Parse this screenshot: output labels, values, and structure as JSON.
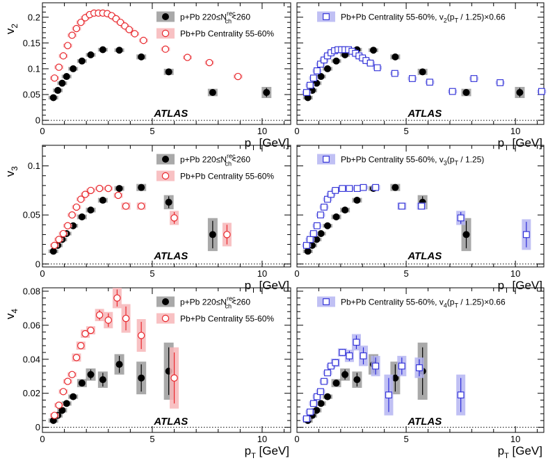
{
  "chart_data": [
    {
      "type": "scatter",
      "id": "v2-left",
      "ylabel": "v",
      "ylabel_sub": "2",
      "xlabel": "p",
      "xlabel_sub": "T",
      "xlabel_unit": " [GeV]",
      "xlim": [
        0,
        11.3
      ],
      "ylim": [
        -0.008,
        0.228
      ],
      "xticks": [
        0,
        5,
        10
      ],
      "yticks": [
        0,
        0.05,
        0.1,
        0.15,
        0.2
      ],
      "ytick_labels": [
        "0",
        "0.05",
        "0.1",
        "0.15",
        "0.2"
      ],
      "atlas_label": "ATLAS",
      "series": [
        {
          "name_prefix": "p+Pb 220≤N",
          "name_sup": "rec",
          "name_sub": "ch",
          "name_suffix": "<260",
          "style": "ppb",
          "x": [
            0.5,
            0.7,
            0.9,
            1.1,
            1.4,
            1.8,
            2.2,
            2.75,
            3.5,
            4.5,
            5.75,
            7.75,
            10.2
          ],
          "y": [
            0.044,
            0.058,
            0.072,
            0.085,
            0.1,
            0.115,
            0.127,
            0.137,
            0.136,
            0.123,
            0.094,
            0.054,
            0.054
          ],
          "yerr": [
            0.002,
            0.002,
            0.002,
            0.002,
            0.002,
            0.002,
            0.002,
            0.002,
            0.003,
            0.004,
            0.005,
            0.006,
            0.009
          ]
        },
        {
          "name": "Pb+Pb  Centrality 55-60%",
          "style": "pbpb",
          "x": [
            0.55,
            0.75,
            0.95,
            1.15,
            1.35,
            1.55,
            1.75,
            1.95,
            2.15,
            2.35,
            2.55,
            2.75,
            2.95,
            3.15,
            3.35,
            3.55,
            3.75,
            3.95,
            4.2,
            4.6,
            5.6,
            6.6,
            7.6,
            8.9
          ],
          "y": [
            0.082,
            0.103,
            0.125,
            0.145,
            0.165,
            0.178,
            0.19,
            0.199,
            0.205,
            0.208,
            0.208,
            0.208,
            0.207,
            0.203,
            0.197,
            0.19,
            0.183,
            0.176,
            0.168,
            0.155,
            0.138,
            0.122,
            0.112,
            0.085
          ],
          "yerr": [
            0.001,
            0.001,
            0.001,
            0.001,
            0.001,
            0.001,
            0.001,
            0.001,
            0.001,
            0.001,
            0.001,
            0.001,
            0.001,
            0.001,
            0.001,
            0.001,
            0.001,
            0.001,
            0.001,
            0.002,
            0.002,
            0.002,
            0.003,
            0.003
          ]
        }
      ]
    },
    {
      "type": "scatter",
      "id": "v2-right",
      "xlabel": "p",
      "xlabel_sub": "T",
      "xlabel_unit": " [GeV]",
      "xlim": [
        0,
        11.3
      ],
      "ylim": [
        -0.008,
        0.228
      ],
      "xticks": [
        0,
        5,
        10
      ],
      "yticks": [
        0,
        0.05,
        0.1,
        0.15,
        0.2
      ],
      "atlas_label": "ATLAS",
      "series": [
        {
          "name": "p+Pb",
          "style": "ppb",
          "legend": false,
          "x": [
            0.5,
            0.7,
            0.9,
            1.1,
            1.4,
            1.8,
            2.2,
            2.75,
            3.5,
            4.5,
            5.75,
            7.75,
            10.2
          ],
          "y": [
            0.044,
            0.058,
            0.072,
            0.085,
            0.1,
            0.115,
            0.127,
            0.137,
            0.136,
            0.123,
            0.094,
            0.054,
            0.054
          ],
          "yerr": [
            0.002,
            0.002,
            0.002,
            0.002,
            0.002,
            0.002,
            0.002,
            0.002,
            0.003,
            0.004,
            0.005,
            0.006,
            0.009
          ]
        },
        {
          "name": "Pb+Pb  Centrality 55-60%, v",
          "name_sub": "2",
          "name_tail": "(p",
          "name_tail_sub": "T",
          "name_end": " / 1.25)×0.66",
          "style": "scaled",
          "x": [
            0.44,
            0.6,
            0.76,
            0.92,
            1.08,
            1.24,
            1.4,
            1.56,
            1.72,
            1.88,
            2.04,
            2.2,
            2.36,
            2.52,
            2.68,
            2.84,
            3.0,
            3.16,
            3.36,
            3.68,
            4.48,
            5.28,
            6.08,
            7.12,
            8.1,
            9.3,
            11.2
          ],
          "y": [
            0.054,
            0.068,
            0.082,
            0.096,
            0.109,
            0.117,
            0.125,
            0.131,
            0.135,
            0.137,
            0.137,
            0.137,
            0.137,
            0.134,
            0.13,
            0.125,
            0.121,
            0.116,
            0.111,
            0.102,
            0.091,
            0.081,
            0.074,
            0.056,
            0.081,
            0.073,
            0.056
          ],
          "yerr": [
            0.001,
            0.001,
            0.001,
            0.001,
            0.001,
            0.001,
            0.001,
            0.001,
            0.001,
            0.001,
            0.001,
            0.001,
            0.001,
            0.001,
            0.001,
            0.001,
            0.001,
            0.001,
            0.001,
            0.001,
            0.001,
            0.002,
            0.002,
            0.002,
            0.002,
            0.002,
            0.002
          ]
        }
      ]
    },
    {
      "type": "scatter",
      "id": "v3-left",
      "ylabel": "v",
      "ylabel_sub": "3",
      "xlabel": "p",
      "xlabel_sub": "T",
      "xlabel_unit": " [GeV]",
      "xlim": [
        0,
        11.3
      ],
      "ylim": [
        -0.003,
        0.121
      ],
      "xticks": [
        0,
        5,
        10
      ],
      "yticks": [
        0,
        0.05,
        0.1
      ],
      "ytick_labels": [
        "0",
        "0.05",
        "0.1"
      ],
      "atlas_label": "ATLAS",
      "series": [
        {
          "name_prefix": "p+Pb 220≤N",
          "name_sup": "rec",
          "name_sub": "ch",
          "name_suffix": "<260",
          "style": "ppb",
          "x": [
            0.5,
            0.7,
            0.9,
            1.1,
            1.4,
            1.8,
            2.2,
            2.75,
            3.5,
            4.5,
            5.75,
            7.75
          ],
          "y": [
            0.013,
            0.019,
            0.025,
            0.031,
            0.039,
            0.048,
            0.055,
            0.065,
            0.077,
            0.078,
            0.063,
            0.03
          ],
          "yerr": [
            0.001,
            0.001,
            0.001,
            0.001,
            0.001,
            0.002,
            0.002,
            0.002,
            0.002,
            0.003,
            0.006,
            0.014
          ]
        },
        {
          "name": "Pb+Pb  Centrality 55-60%",
          "style": "pbpb",
          "x": [
            0.55,
            0.75,
            0.95,
            1.15,
            1.35,
            1.55,
            1.75,
            1.95,
            2.2,
            2.6,
            3.0,
            3.45,
            3.8,
            4.5,
            6.0,
            8.4
          ],
          "y": [
            0.019,
            0.025,
            0.031,
            0.039,
            0.05,
            0.058,
            0.066,
            0.071,
            0.075,
            0.077,
            0.077,
            0.07,
            0.059,
            0.059,
            0.047,
            0.03
          ],
          "yerr": [
            0.001,
            0.001,
            0.001,
            0.001,
            0.001,
            0.001,
            0.001,
            0.001,
            0.001,
            0.001,
            0.001,
            0.002,
            0.003,
            0.003,
            0.006,
            0.01
          ]
        }
      ]
    },
    {
      "type": "scatter",
      "id": "v3-right",
      "xlabel": "p",
      "xlabel_sub": "T",
      "xlabel_unit": " [GeV]",
      "xlim": [
        0,
        11.3
      ],
      "ylim": [
        -0.003,
        0.121
      ],
      "xticks": [
        0,
        5,
        10
      ],
      "yticks": [
        0,
        0.05,
        0.1
      ],
      "atlas_label": "ATLAS",
      "series": [
        {
          "name": "p+Pb",
          "style": "ppb",
          "legend": false,
          "x": [
            0.5,
            0.7,
            0.9,
            1.1,
            1.4,
            1.8,
            2.2,
            2.75,
            3.5,
            4.5,
            5.75,
            7.75
          ],
          "y": [
            0.013,
            0.019,
            0.025,
            0.031,
            0.039,
            0.048,
            0.055,
            0.065,
            0.077,
            0.078,
            0.063,
            0.03
          ],
          "yerr": [
            0.001,
            0.001,
            0.001,
            0.001,
            0.001,
            0.002,
            0.002,
            0.002,
            0.002,
            0.003,
            0.006,
            0.014
          ]
        },
        {
          "name": "Pb+Pb  Centrality 55-60%, v",
          "name_sub": "3",
          "name_tail": "(p",
          "name_tail_sub": "T",
          "name_end": " / 1.25)",
          "style": "scaled",
          "x": [
            0.44,
            0.6,
            0.76,
            0.92,
            1.08,
            1.24,
            1.4,
            1.56,
            1.76,
            2.08,
            2.4,
            2.76,
            3.04,
            3.6,
            4.8,
            5.7,
            7.5,
            10.5
          ],
          "y": [
            0.019,
            0.025,
            0.031,
            0.039,
            0.05,
            0.058,
            0.066,
            0.071,
            0.075,
            0.077,
            0.077,
            0.077,
            0.078,
            0.078,
            0.059,
            0.059,
            0.047,
            0.03
          ],
          "yerr": [
            0.001,
            0.001,
            0.001,
            0.001,
            0.001,
            0.001,
            0.001,
            0.001,
            0.001,
            0.001,
            0.001,
            0.001,
            0.001,
            0.002,
            0.003,
            0.003,
            0.006,
            0.013
          ]
        }
      ]
    },
    {
      "type": "scatter",
      "id": "v4-left",
      "ylabel": "v",
      "ylabel_sub": "4",
      "xlabel": "p",
      "xlabel_sub": "T",
      "xlabel_unit": " [GeV]",
      "xlim": [
        0,
        11.3
      ],
      "ylim": [
        -0.003,
        0.082
      ],
      "xticks": [
        0,
        5,
        10
      ],
      "yticks": [
        0,
        0.02,
        0.04,
        0.06,
        0.08
      ],
      "ytick_labels": [
        "0",
        "0.02",
        "0.04",
        "0.06",
        "0.08"
      ],
      "atlas_label": "ATLAS",
      "series": [
        {
          "name_prefix": "p+Pb 220≤N",
          "name_sup": "rec",
          "name_sub": "ch",
          "name_suffix": "<260",
          "style": "ppb",
          "x": [
            0.5,
            0.7,
            0.9,
            1.1,
            1.4,
            1.8,
            2.2,
            2.75,
            3.5,
            4.5,
            5.75
          ],
          "y": [
            0.004,
            0.007,
            0.01,
            0.014,
            0.018,
            0.026,
            0.031,
            0.028,
            0.037,
            0.029,
            0.033
          ],
          "yerr": [
            0.001,
            0.001,
            0.001,
            0.001,
            0.001,
            0.002,
            0.003,
            0.004,
            0.005,
            0.008,
            0.014
          ]
        },
        {
          "name": "Pb+Pb  Centrality 55-60%",
          "style": "pbpb",
          "x": [
            0.55,
            0.75,
            0.95,
            1.15,
            1.35,
            1.55,
            1.75,
            1.95,
            2.2,
            2.6,
            3.0,
            3.4,
            3.8,
            4.5,
            6.0
          ],
          "y": [
            0.007,
            0.013,
            0.021,
            0.027,
            0.031,
            0.041,
            0.048,
            0.055,
            0.057,
            0.066,
            0.063,
            0.076,
            0.064,
            0.054,
            0.029
          ],
          "yerr": [
            0.001,
            0.001,
            0.001,
            0.001,
            0.001,
            0.002,
            0.002,
            0.002,
            0.002,
            0.003,
            0.004,
            0.005,
            0.007,
            0.008,
            0.015
          ]
        }
      ]
    },
    {
      "type": "scatter",
      "id": "v4-right",
      "xlabel": "p",
      "xlabel_sub": "T",
      "xlabel_unit": " [GeV]",
      "xlim": [
        0,
        11.3
      ],
      "ylim": [
        -0.003,
        0.082
      ],
      "xticks": [
        0,
        5,
        10
      ],
      "yticks": [
        0,
        0.02,
        0.04,
        0.06,
        0.08
      ],
      "atlas_label": "ATLAS",
      "series": [
        {
          "name": "p+Pb",
          "style": "ppb",
          "legend": false,
          "x": [
            0.5,
            0.7,
            0.9,
            1.1,
            1.4,
            1.8,
            2.2,
            2.75,
            3.5,
            4.5,
            5.75
          ],
          "y": [
            0.004,
            0.007,
            0.01,
            0.014,
            0.018,
            0.026,
            0.031,
            0.028,
            0.037,
            0.029,
            0.033
          ],
          "yerr": [
            0.001,
            0.001,
            0.001,
            0.001,
            0.001,
            0.002,
            0.003,
            0.004,
            0.005,
            0.008,
            0.014
          ]
        },
        {
          "name": "Pb+Pb  Centrality 55-60%, v",
          "name_sub": "4",
          "name_tail": "(p",
          "name_tail_sub": "T",
          "name_end": " / 1.25)×0.66",
          "style": "scaled",
          "x": [
            0.44,
            0.6,
            0.76,
            0.92,
            1.08,
            1.24,
            1.4,
            1.56,
            1.76,
            2.08,
            2.4,
            2.72,
            3.04,
            3.6,
            4.2,
            4.8,
            5.6,
            7.5
          ],
          "y": [
            0.005,
            0.009,
            0.014,
            0.018,
            0.021,
            0.027,
            0.032,
            0.036,
            0.038,
            0.044,
            0.042,
            0.05,
            0.042,
            0.036,
            0.019,
            0.036,
            0.035,
            0.019
          ],
          "yerr": [
            0.001,
            0.001,
            0.001,
            0.001,
            0.001,
            0.001,
            0.001,
            0.001,
            0.002,
            0.002,
            0.003,
            0.004,
            0.005,
            0.005,
            0.01,
            0.005,
            0.005,
            0.01
          ]
        }
      ]
    }
  ]
}
